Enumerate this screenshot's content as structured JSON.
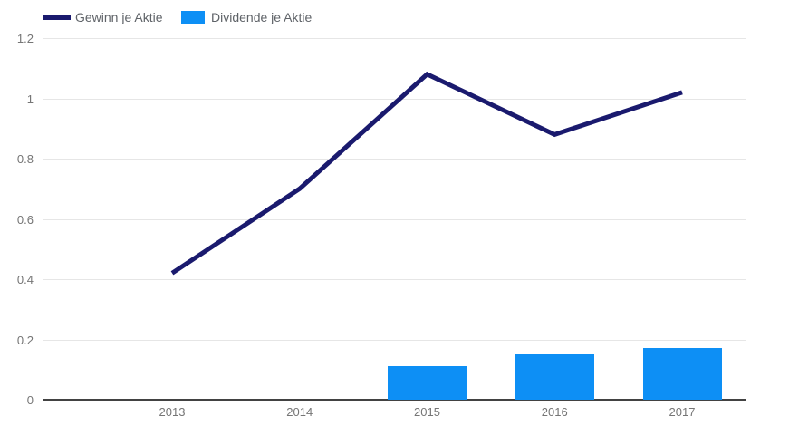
{
  "chart_data": {
    "type": "combo",
    "title": "",
    "categories": [
      "2013",
      "2014",
      "2015",
      "2016",
      "2017"
    ],
    "series": [
      {
        "name": "Gewinn je Aktie",
        "type": "line",
        "color": "#1a1a6e",
        "values": [
          0.42,
          0.7,
          1.08,
          0.88,
          1.02
        ]
      },
      {
        "name": "Dividende je Aktie",
        "type": "bar",
        "color": "#0d8ff5",
        "values": [
          0,
          0,
          0.11,
          0.15,
          0.17
        ]
      }
    ],
    "xlabel": "",
    "ylabel": "",
    "ylim": [
      0,
      1.2
    ],
    "yticks": [
      0,
      0.2,
      0.4,
      0.6,
      0.8,
      1,
      1.2
    ],
    "ytick_labels": [
      "0",
      "0.2",
      "0.4",
      "0.6",
      "0.8",
      "1",
      "1.2"
    ],
    "grid": true,
    "legend_position": "top-left",
    "colors": {
      "gridline": "#e6e6e6",
      "axis_line": "#424242",
      "tick_text": "#757575",
      "legend_text": "#5f6368",
      "background": "#ffffff"
    }
  }
}
